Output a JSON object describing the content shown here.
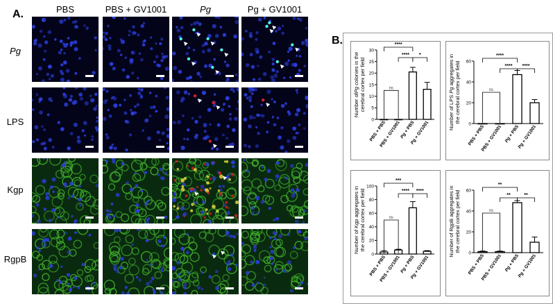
{
  "figure": {
    "panel_a_label": "A.",
    "panel_b_label": "B.",
    "column_headers": [
      "PBS",
      "PBS + GV1001",
      "Pg",
      "Pg + GV1001"
    ],
    "row_labels": [
      "Pg",
      "LPS",
      "Kgp",
      "RgpB"
    ]
  },
  "microscopy": {
    "tiles": [
      {
        "row": "Pg",
        "col": "PBS",
        "stain": "blue"
      },
      {
        "row": "Pg",
        "col": "PBS + GV1001",
        "stain": "blue"
      },
      {
        "row": "Pg",
        "col": "Pg",
        "stain": "blue-cyan-arrows"
      },
      {
        "row": "Pg",
        "col": "Pg + GV1001",
        "stain": "blue-cyan-arrows"
      },
      {
        "row": "LPS",
        "col": "PBS",
        "stain": "blue"
      },
      {
        "row": "LPS",
        "col": "PBS + GV1001",
        "stain": "blue"
      },
      {
        "row": "LPS",
        "col": "Pg",
        "stain": "blue-red-arrows"
      },
      {
        "row": "LPS",
        "col": "Pg + GV1001",
        "stain": "blue-red-arrow"
      },
      {
        "row": "Kgp",
        "col": "PBS",
        "stain": "green-blue"
      },
      {
        "row": "Kgp",
        "col": "PBS + GV1001",
        "stain": "green-blue"
      },
      {
        "row": "Kgp",
        "col": "Pg",
        "stain": "green-yellow-red-arrows"
      },
      {
        "row": "Kgp",
        "col": "Pg + GV1001",
        "stain": "green-blue"
      },
      {
        "row": "RgpB",
        "col": "PBS",
        "stain": "green-blue"
      },
      {
        "row": "RgpB",
        "col": "PBS + GV1001",
        "stain": "green-blue"
      },
      {
        "row": "RgpB",
        "col": "Pg",
        "stain": "green-blue-arrows"
      },
      {
        "row": "RgpB",
        "col": "Pg + GV1001",
        "stain": "green-blue"
      }
    ],
    "colors": {
      "background": "#03031a",
      "nuclei": "#2a3dd6",
      "green": "#3fae2a",
      "cyan": "#4df0e0",
      "red": "#d02020",
      "yellow": "#e8e040"
    }
  },
  "chart_data": [
    {
      "type": "bar",
      "ylabel_line1": "Number of",
      "ylabel_italic": "Pg",
      "ylabel_line1_rest": " colonies in the",
      "ylabel_line2": "cerebral cortex per field",
      "categories": [
        "PBS + PBS",
        "PBS + GV1001",
        "Pg + PBS",
        "Pg + GV1001"
      ],
      "values": [
        0,
        0,
        20.5,
        13
      ],
      "errors": [
        0,
        0,
        2,
        3
      ],
      "ylim": [
        0,
        30
      ],
      "yticks": [
        0,
        5,
        10,
        15,
        20,
        25,
        30
      ],
      "comparisons": [
        {
          "from": 0,
          "to": 2,
          "label": "****",
          "level": 3
        },
        {
          "from": 1,
          "to": 2,
          "label": "****",
          "level": 2
        },
        {
          "from": 2,
          "to": 3,
          "label": "*",
          "level": 2
        },
        {
          "from": 0,
          "to": 1,
          "label": "ns",
          "level": 0
        }
      ]
    },
    {
      "type": "bar",
      "ylabel_line1": "Number of LPS ",
      "ylabel_italic": "Pg",
      "ylabel_line1_rest": " aggregates in",
      "ylabel_line2": "the cerebral cortex per field",
      "categories": [
        "PBS + PBS",
        "PBS + GV1001",
        "Pg + PBS",
        "Pg + GV1001"
      ],
      "values": [
        0,
        0,
        47,
        20
      ],
      "errors": [
        0,
        0,
        4,
        3
      ],
      "ylim": [
        0,
        60
      ],
      "yticks": [
        0,
        20,
        40,
        60
      ],
      "comparisons": [
        {
          "from": 0,
          "to": 2,
          "label": "****",
          "level": 3
        },
        {
          "from": 1,
          "to": 2,
          "label": "****",
          "level": 2
        },
        {
          "from": 2,
          "to": 3,
          "label": "****",
          "level": 2
        },
        {
          "from": 0,
          "to": 1,
          "label": "ns",
          "level": 0
        }
      ]
    },
    {
      "type": "bar",
      "ylabel_line1": "Number of Kgp aggregates in",
      "ylabel_italic": "",
      "ylabel_line1_rest": "",
      "ylabel_line2": "the cerebral cortex per field",
      "categories": [
        "PBS + PBS",
        "PBS + GV1001",
        "Pg + PBS",
        "Pg + GV1001"
      ],
      "values": [
        3,
        6,
        68,
        4
      ],
      "errors": [
        2,
        1,
        9,
        1
      ],
      "ylim": [
        0,
        100
      ],
      "yticks": [
        0,
        20,
        40,
        60,
        80,
        100
      ],
      "comparisons": [
        {
          "from": 0,
          "to": 2,
          "label": "***",
          "level": 3
        },
        {
          "from": 1,
          "to": 2,
          "label": "****",
          "level": 2
        },
        {
          "from": 2,
          "to": 3,
          "label": "****",
          "level": 2
        },
        {
          "from": 0,
          "to": 1,
          "label": "ns",
          "level": 0
        }
      ]
    },
    {
      "type": "bar",
      "ylabel_line1": "Number of RgpB aggregates in",
      "ylabel_italic": "",
      "ylabel_line1_rest": "",
      "ylabel_line2": "the cerebral cortex per field",
      "categories": [
        "PBS + PBS",
        "PBS + GV1001",
        "Pg + PBS",
        "Pg + GV1001"
      ],
      "values": [
        1,
        1,
        48,
        10
      ],
      "errors": [
        0.5,
        0.5,
        2,
        5
      ],
      "ylim": [
        0,
        60
      ],
      "yticks": [
        0,
        20,
        40,
        60
      ],
      "comparisons": [
        {
          "from": 0,
          "to": 2,
          "label": "**",
          "level": 3
        },
        {
          "from": 1,
          "to": 2,
          "label": "**",
          "level": 2
        },
        {
          "from": 2,
          "to": 3,
          "label": "**",
          "level": 2
        },
        {
          "from": 0,
          "to": 1,
          "label": "ns",
          "level": 0
        }
      ]
    }
  ]
}
